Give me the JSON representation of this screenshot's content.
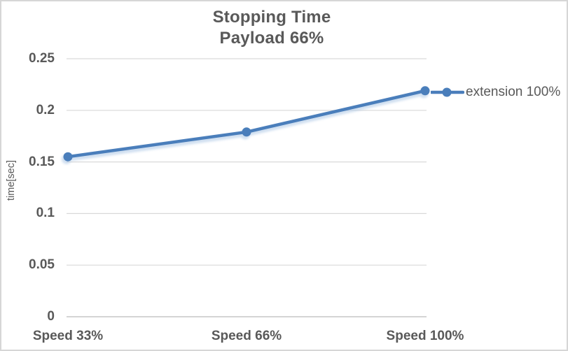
{
  "chart_data": {
    "type": "line",
    "title": "Stopping Time",
    "subtitle": "Payload 66%",
    "xlabel": "",
    "ylabel": "time[sec]",
    "categories": [
      "Speed 33%",
      "Speed 66%",
      "Speed 100%"
    ],
    "series": [
      {
        "name": "extension 100%",
        "values": [
          0.155,
          0.179,
          0.219
        ],
        "marker": "circle"
      }
    ],
    "ylim": [
      0,
      0.25
    ],
    "y_ticks": [
      0,
      0.05,
      0.1,
      0.15,
      0.2,
      0.25
    ],
    "y_tick_labels": [
      "0",
      "0.05",
      "0.1",
      "0.15",
      "0.2",
      "0.25"
    ],
    "grid": true,
    "legend_position": "right",
    "colors": {
      "series": "#4a7ebb",
      "series_glow": "#a9c5e4",
      "gridline": "#d9d9d9",
      "axis_line": "#c6c6c6",
      "text": "#595959",
      "border": "#d6d6d6"
    }
  }
}
